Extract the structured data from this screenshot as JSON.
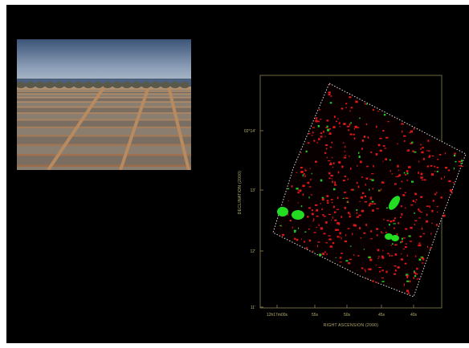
{
  "sky_map": {
    "y_axis_label": "DECLINATION (2000)",
    "x_axis_label": "RIGHT ASCENSION (2000)",
    "y_ticks": [
      "02°14'",
      "13'",
      "12'",
      "11'"
    ],
    "x_ticks": [
      "12h17m00s",
      "55s",
      "50s",
      "45s",
      "40s"
    ]
  }
}
